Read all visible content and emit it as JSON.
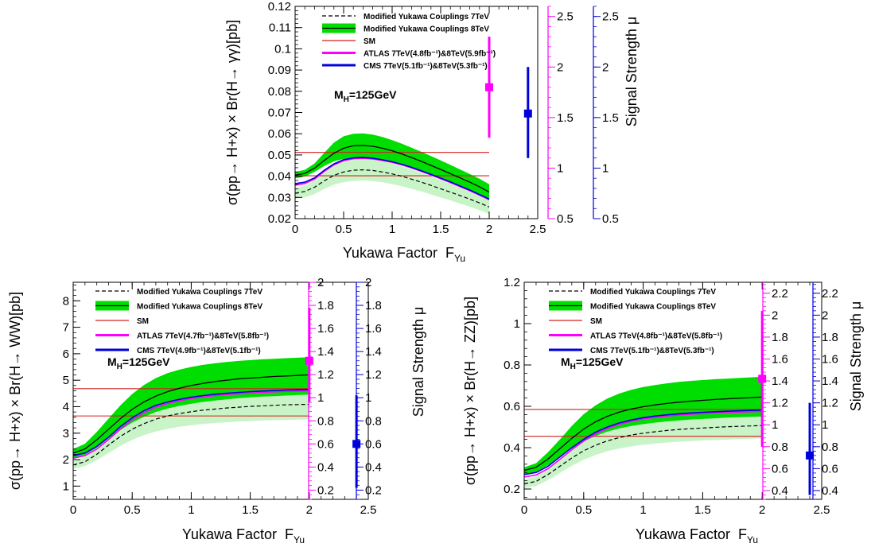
{
  "chart_data": [
    {
      "id": "gammagamma",
      "type": "line",
      "xlabel": "Yukawa Factor",
      "xlabel_sub": "Yu",
      "xlabel_prefix": "F",
      "ylabel": "σ(pp→ H+x) × Br(H→ γγ)[pb]",
      "right_label": "Signal Strength μ",
      "annotation": "M",
      "annotation_sub": "H",
      "annotation_rest": "=125GeV",
      "xlim": [
        0,
        2.5
      ],
      "ylim": [
        0.02,
        0.12
      ],
      "x_ticks": [
        "0",
        "0.5",
        "1",
        "1.5",
        "2",
        "2.5"
      ],
      "x_tick_values": [
        0,
        0.5,
        1,
        1.5,
        2,
        2.5
      ],
      "y_ticks": [
        "0.02",
        "0.03",
        "0.04",
        "0.05",
        "0.06",
        "0.07",
        "0.08",
        "0.09",
        "0.1",
        "0.11",
        "0.12"
      ],
      "y_tick_values": [
        0.02,
        0.03,
        0.04,
        0.05,
        0.06,
        0.07,
        0.08,
        0.09,
        0.1,
        0.11,
        0.12
      ],
      "mu_atlas_lim": [
        0.5,
        2.6
      ],
      "mu_atlas_ticks": [
        "0.5",
        "1",
        "1.5",
        "2",
        "2.5"
      ],
      "mu_atlas_tick_values": [
        0.5,
        1,
        1.5,
        2,
        2.5
      ],
      "mu_cms_lim": [
        0.5,
        2.6
      ],
      "mu_cms_ticks": [
        "0.5",
        "1",
        "1.5",
        "2",
        "2.5"
      ],
      "mu_cms_tick_values": [
        0.5,
        1,
        1.5,
        2,
        2.5
      ],
      "legend": [
        {
          "text": "Modified Yukawa Couplings 7TeV",
          "style": "dash7"
        },
        {
          "text": "Modified Yukawa Couplings 8TeV",
          "style": "band8"
        },
        {
          "text": "SM",
          "style": "sm"
        },
        {
          "text": "ATLAS 7TeV(4.8fb⁻¹)&8TeV(5.9fb⁻¹)",
          "style": "atlas"
        },
        {
          "text": "CMS    7TeV(5.1fb⁻¹)&8TeV(5.3fb⁻¹)",
          "style": "cms"
        }
      ],
      "x": [
        0,
        0.1,
        0.2,
        0.3,
        0.4,
        0.5,
        0.6,
        0.7,
        0.8,
        0.9,
        1.0,
        1.1,
        1.2,
        1.3,
        1.4,
        1.5,
        1.6,
        1.7,
        1.8,
        1.9,
        2.0
      ],
      "series": [
        {
          "key": "c8",
          "values": [
            0.0405,
            0.0413,
            0.0438,
            0.0474,
            0.0508,
            0.0532,
            0.0543,
            0.0545,
            0.0541,
            0.0532,
            0.052,
            0.0505,
            0.0488,
            0.047,
            0.0451,
            0.0432,
            0.0412,
            0.0392,
            0.0372,
            0.035,
            0.0325
          ]
        },
        {
          "key": "lo8",
          "values": [
            0.039,
            0.0398,
            0.042,
            0.0448,
            0.047,
            0.0482,
            0.0488,
            0.0488,
            0.0484,
            0.0476,
            0.0466,
            0.0453,
            0.0438,
            0.0422,
            0.0405,
            0.0387,
            0.0369,
            0.0351,
            0.0332,
            0.0312,
            0.029
          ]
        },
        {
          "key": "hi8",
          "values": [
            0.042,
            0.043,
            0.046,
            0.051,
            0.0558,
            0.0588,
            0.06,
            0.0602,
            0.0596,
            0.0585,
            0.057,
            0.0553,
            0.0534,
            0.0515,
            0.0495,
            0.0474,
            0.0453,
            0.0432,
            0.041,
            0.0388,
            0.0362
          ]
        },
        {
          "key": "blue",
          "values": [
            0.0365,
            0.0372,
            0.0392,
            0.0428,
            0.0458,
            0.0478,
            0.0486,
            0.0488,
            0.0485,
            0.0477,
            0.0468,
            0.0456,
            0.0442,
            0.0426,
            0.0409,
            0.0391,
            0.0373,
            0.0354,
            0.0335,
            0.0314,
            0.0292
          ]
        },
        {
          "key": "magenta",
          "values": [
            0.0358,
            0.0365,
            0.0386,
            0.0422,
            0.0453,
            0.0473,
            0.0482,
            0.0484,
            0.0481,
            0.0474,
            0.0465,
            0.0453,
            0.0439,
            0.0423,
            0.0406,
            0.0388,
            0.037,
            0.0351,
            0.0332,
            0.0311,
            0.0289
          ]
        },
        {
          "key": "c7",
          "values": [
            0.032,
            0.0328,
            0.0348,
            0.0378,
            0.0404,
            0.042,
            0.0428,
            0.043,
            0.0427,
            0.042,
            0.0411,
            0.04,
            0.0386,
            0.0372,
            0.0357,
            0.0341,
            0.0325,
            0.0309,
            0.0292,
            0.0274,
            0.0255
          ]
        },
        {
          "key": "lo7",
          "values": [
            0.0295,
            0.03,
            0.0316,
            0.034,
            0.036,
            0.0372,
            0.0378,
            0.038,
            0.0377,
            0.0371,
            0.0363,
            0.0353,
            0.0341,
            0.0328,
            0.0314,
            0.03,
            0.0286,
            0.0271,
            0.0256,
            0.024,
            0.0222
          ]
        },
        {
          "key": "hi7",
          "values": [
            0.0345,
            0.0355,
            0.038,
            0.0415,
            0.0448,
            0.0468,
            0.0478,
            0.048,
            0.0477,
            0.047,
            0.046,
            0.0447,
            0.0432,
            0.0416,
            0.0399,
            0.0382,
            0.0364,
            0.0346,
            0.0328,
            0.0308,
            0.0287
          ]
        }
      ],
      "sm_lines": [
        0.0402,
        0.0512
      ],
      "atlas_point": {
        "x": 2.0,
        "mu": 1.8,
        "mu_lo": 1.3,
        "mu_hi": 2.3
      },
      "cms_point": {
        "x": 2.4,
        "mu": 1.54,
        "mu_lo": 1.1,
        "mu_hi": 2.0
      }
    },
    {
      "id": "ww",
      "type": "line",
      "xlabel": "Yukawa Factor",
      "xlabel_sub": "Yu",
      "xlabel_prefix": "F",
      "ylabel": "σ(pp→ H+x) × Br(H→ WW)[pb]",
      "right_label": "Signal Strength μ",
      "annotation": "M",
      "annotation_sub": "H",
      "annotation_rest": "=125GeV",
      "xlim": [
        0,
        2.5
      ],
      "ylim": [
        0.5,
        8.7
      ],
      "x_ticks": [
        "0",
        "0.5",
        "1",
        "1.5",
        "2",
        "2.5"
      ],
      "x_tick_values": [
        0,
        0.5,
        1,
        1.5,
        2,
        2.5
      ],
      "y_ticks": [
        "1",
        "2",
        "3",
        "4",
        "5",
        "6",
        "7",
        "8"
      ],
      "y_tick_values": [
        1,
        2,
        3,
        4,
        5,
        6,
        7,
        8
      ],
      "mu_atlas_lim": [
        0.12,
        2.0
      ],
      "mu_atlas_ticks": [
        "0.2",
        "0.4",
        "0.6",
        "0.8",
        "1",
        "1.2",
        "1.4",
        "1.6",
        "1.8",
        "2"
      ],
      "mu_atlas_tick_values": [
        0.2,
        0.4,
        0.6,
        0.8,
        1,
        1.2,
        1.4,
        1.6,
        1.8,
        2
      ],
      "mu_cms_lim": [
        0.12,
        2.0
      ],
      "mu_cms_ticks": [
        "0.2",
        "0.4",
        "0.6",
        "0.8",
        "1",
        "1.2",
        "1.4",
        "1.6",
        "1.8",
        "2"
      ],
      "mu_cms_tick_values": [
        0.2,
        0.4,
        0.6,
        0.8,
        1,
        1.2,
        1.4,
        1.6,
        1.8,
        2
      ],
      "legend": [
        {
          "text": "Modified Yukawa Couplings 7TeV",
          "style": "dash7"
        },
        {
          "text": "Modified Yukawa Couplings 8TeV",
          "style": "band8"
        },
        {
          "text": "SM",
          "style": "sm"
        },
        {
          "text": "ATLAS 7TeV(4.7fb⁻¹)&8TeV(5.8fb⁻¹)",
          "style": "atlas"
        },
        {
          "text": "CMS    7TeV(4.9fb⁻¹)&8TeV(5.1fb⁻¹)",
          "style": "cms"
        }
      ],
      "x": [
        0,
        0.1,
        0.2,
        0.3,
        0.4,
        0.5,
        0.6,
        0.7,
        0.8,
        0.9,
        1.0,
        1.1,
        1.2,
        1.3,
        1.4,
        1.5,
        1.6,
        1.7,
        1.8,
        1.9,
        2.0
      ],
      "series": [
        {
          "key": "c8",
          "values": [
            2.25,
            2.4,
            2.75,
            3.15,
            3.55,
            3.9,
            4.18,
            4.4,
            4.57,
            4.7,
            4.8,
            4.88,
            4.95,
            5.0,
            5.05,
            5.08,
            5.11,
            5.14,
            5.16,
            5.18,
            5.2
          ]
        },
        {
          "key": "lo8",
          "values": [
            2.05,
            2.18,
            2.45,
            2.8,
            3.12,
            3.4,
            3.62,
            3.8,
            3.93,
            4.03,
            4.11,
            4.18,
            4.23,
            4.28,
            4.32,
            4.35,
            4.38,
            4.4,
            4.42,
            4.44,
            4.46
          ]
        },
        {
          "key": "hi8",
          "values": [
            2.4,
            2.6,
            3.05,
            3.55,
            4.05,
            4.48,
            4.82,
            5.08,
            5.27,
            5.4,
            5.5,
            5.58,
            5.64,
            5.69,
            5.73,
            5.76,
            5.79,
            5.81,
            5.83,
            5.85,
            5.87
          ]
        },
        {
          "key": "blue",
          "values": [
            2.15,
            2.25,
            2.5,
            2.85,
            3.25,
            3.58,
            3.85,
            4.05,
            4.18,
            4.28,
            4.36,
            4.42,
            4.47,
            4.51,
            4.54,
            4.57,
            4.59,
            4.61,
            4.63,
            4.64,
            4.65
          ]
        },
        {
          "key": "magenta",
          "values": [
            2.05,
            2.15,
            2.4,
            2.76,
            3.15,
            3.5,
            3.77,
            3.98,
            4.12,
            4.23,
            4.31,
            4.37,
            4.42,
            4.46,
            4.49,
            4.52,
            4.54,
            4.56,
            4.58,
            4.59,
            4.6
          ]
        },
        {
          "key": "c7",
          "values": [
            1.8,
            1.92,
            2.2,
            2.55,
            2.88,
            3.15,
            3.36,
            3.53,
            3.65,
            3.74,
            3.81,
            3.87,
            3.91,
            3.95,
            3.98,
            4.01,
            4.03,
            4.05,
            4.07,
            4.08,
            4.09
          ]
        },
        {
          "key": "lo7",
          "values": [
            1.65,
            1.76,
            1.98,
            2.25,
            2.52,
            2.75,
            2.93,
            3.06,
            3.16,
            3.24,
            3.3,
            3.35,
            3.38,
            3.41,
            3.44,
            3.46,
            3.48,
            3.49,
            3.5,
            3.51,
            3.52
          ]
        },
        {
          "key": "hi7",
          "values": [
            1.95,
            2.1,
            2.42,
            2.85,
            3.25,
            3.58,
            3.83,
            4.03,
            4.17,
            4.28,
            4.36,
            4.42,
            4.47,
            4.51,
            4.54,
            4.57,
            4.59,
            4.61,
            4.63,
            4.64,
            4.65
          ]
        }
      ],
      "sm_lines": [
        3.65,
        4.68
      ],
      "atlas_point": {
        "x": 2.0,
        "mu": 1.32,
        "mu_lo": 0.96,
        "mu_hi": 1.78
      },
      "cms_point": {
        "x": 2.4,
        "mu": 0.6,
        "mu_lo": 0.22,
        "mu_hi": 1.02
      }
    },
    {
      "id": "zz",
      "type": "line",
      "xlabel": "Yukawa Factor",
      "xlabel_sub": "Yu",
      "xlabel_prefix": "F",
      "ylabel": "σ(pp→ H+x) × Br(H→ ZZ)[pb]",
      "right_label": "Signal Strength μ",
      "annotation": "M",
      "annotation_sub": "H",
      "annotation_rest": "=125GeV",
      "xlim": [
        0,
        2.5
      ],
      "ylim": [
        0.15,
        1.2
      ],
      "x_ticks": [
        "0",
        "0.5",
        "1",
        "1.5",
        "2",
        "2.5"
      ],
      "x_tick_values": [
        0,
        0.5,
        1,
        1.5,
        2,
        2.5
      ],
      "y_ticks": [
        "0.2",
        "0.4",
        "0.6",
        "0.8",
        "1",
        "1.2"
      ],
      "y_tick_values": [
        0.2,
        0.4,
        0.6,
        0.8,
        1,
        1.2
      ],
      "mu_atlas_lim": [
        0.32,
        2.3
      ],
      "mu_atlas_ticks": [
        "0.4",
        "0.6",
        "0.8",
        "1",
        "1.2",
        "1.4",
        "1.6",
        "1.8",
        "2",
        "2.2"
      ],
      "mu_atlas_tick_values": [
        0.4,
        0.6,
        0.8,
        1,
        1.2,
        1.4,
        1.6,
        1.8,
        2,
        2.2
      ],
      "mu_cms_lim": [
        0.32,
        2.3
      ],
      "mu_cms_ticks": [
        "0.4",
        "0.6",
        "0.8",
        "1",
        "1.2",
        "1.4",
        "1.6",
        "1.8",
        "2",
        "2.2"
      ],
      "mu_cms_tick_values": [
        0.4,
        0.6,
        0.8,
        1,
        1.2,
        1.4,
        1.6,
        1.8,
        2,
        2.2
      ],
      "legend": [
        {
          "text": "Modified Yukawa Couplings 7TeV",
          "style": "dash7"
        },
        {
          "text": "Modified Yukawa Couplings 8TeV",
          "style": "band8"
        },
        {
          "text": "SM",
          "style": "sm"
        },
        {
          "text": "ATLAS 7TeV(4.8fb⁻¹)&8TeV(5.8fb⁻¹)",
          "style": "atlas"
        },
        {
          "text": "CMS    7TeV(5.1fb⁻¹)&8TeV(5.3fb⁻¹)",
          "style": "cms"
        }
      ],
      "x": [
        0,
        0.1,
        0.2,
        0.3,
        0.4,
        0.5,
        0.6,
        0.7,
        0.8,
        0.9,
        1.0,
        1.1,
        1.2,
        1.3,
        1.4,
        1.5,
        1.6,
        1.7,
        1.8,
        1.9,
        2.0
      ],
      "series": [
        {
          "key": "c8",
          "values": [
            0.29,
            0.305,
            0.345,
            0.395,
            0.445,
            0.49,
            0.525,
            0.552,
            0.572,
            0.587,
            0.598,
            0.607,
            0.614,
            0.62,
            0.625,
            0.629,
            0.633,
            0.636,
            0.639,
            0.642,
            0.645
          ]
        },
        {
          "key": "lo8",
          "values": [
            0.27,
            0.283,
            0.315,
            0.355,
            0.395,
            0.43,
            0.457,
            0.478,
            0.493,
            0.505,
            0.514,
            0.521,
            0.527,
            0.532,
            0.536,
            0.539,
            0.542,
            0.545,
            0.547,
            0.549,
            0.551
          ]
        },
        {
          "key": "hi8",
          "values": [
            0.305,
            0.325,
            0.378,
            0.44,
            0.505,
            0.562,
            0.605,
            0.638,
            0.662,
            0.68,
            0.693,
            0.703,
            0.711,
            0.718,
            0.723,
            0.727,
            0.731,
            0.734,
            0.737,
            0.74,
            0.743
          ]
        },
        {
          "key": "blue",
          "values": [
            0.27,
            0.28,
            0.31,
            0.355,
            0.4,
            0.44,
            0.475,
            0.5,
            0.52,
            0.534,
            0.545,
            0.553,
            0.559,
            0.564,
            0.568,
            0.571,
            0.574,
            0.576,
            0.578,
            0.58,
            0.582
          ]
        },
        {
          "key": "magenta",
          "values": [
            0.258,
            0.268,
            0.298,
            0.343,
            0.39,
            0.432,
            0.467,
            0.493,
            0.513,
            0.528,
            0.539,
            0.547,
            0.553,
            0.558,
            0.562,
            0.565,
            0.568,
            0.57,
            0.572,
            0.574,
            0.576
          ]
        },
        {
          "key": "c7",
          "values": [
            0.225,
            0.237,
            0.27,
            0.31,
            0.35,
            0.385,
            0.412,
            0.433,
            0.449,
            0.461,
            0.47,
            0.477,
            0.483,
            0.488,
            0.492,
            0.495,
            0.498,
            0.501,
            0.503,
            0.505,
            0.507
          ]
        },
        {
          "key": "lo7",
          "values": [
            0.205,
            0.215,
            0.243,
            0.278,
            0.312,
            0.342,
            0.365,
            0.383,
            0.396,
            0.406,
            0.414,
            0.42,
            0.425,
            0.429,
            0.432,
            0.435,
            0.437,
            0.439,
            0.441,
            0.443,
            0.445
          ]
        },
        {
          "key": "hi7",
          "values": [
            0.245,
            0.26,
            0.3,
            0.348,
            0.395,
            0.435,
            0.465,
            0.488,
            0.505,
            0.518,
            0.528,
            0.536,
            0.542,
            0.547,
            0.551,
            0.555,
            0.558,
            0.561,
            0.563,
            0.565,
            0.567
          ]
        }
      ],
      "sm_lines": [
        0.455,
        0.585
      ],
      "atlas_point": {
        "x": 2.0,
        "mu": 1.42,
        "mu_lo": 0.8,
        "mu_hi": 2.04
      },
      "cms_point": {
        "x": 2.4,
        "mu": 0.72,
        "mu_lo": 0.36,
        "mu_hi": 1.2
      }
    }
  ]
}
